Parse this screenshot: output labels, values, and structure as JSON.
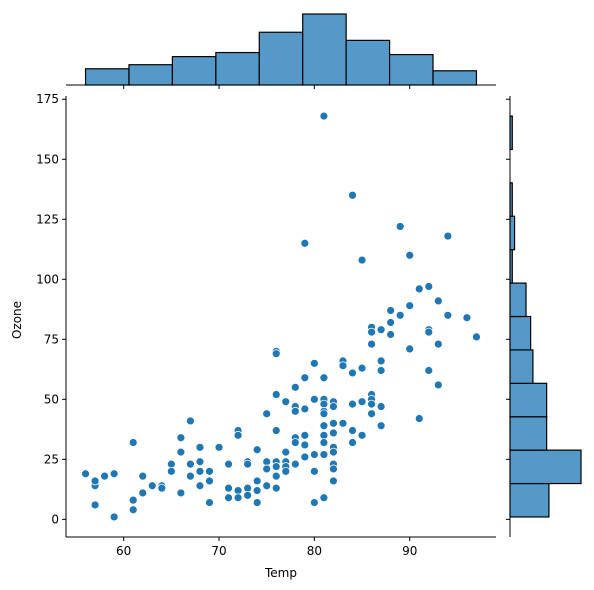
{
  "chart_data": {
    "type": "scatter",
    "title": "",
    "xlabel": "Temp",
    "ylabel": "Ozone",
    "xlim": [
      53.95,
      99.05
    ],
    "ylim": [
      -7.35,
      176.35
    ],
    "xticks": [
      60,
      70,
      80,
      90
    ],
    "yticks": [
      0,
      25,
      50,
      75,
      100,
      125,
      150,
      175
    ],
    "grid": false,
    "legend": "none",
    "colors": {
      "point_fill": "#1f77b4",
      "point_edge": "#ffffff",
      "hist_fill": "#5499c7",
      "hist_edge": "#000000"
    },
    "points": [
      [
        56,
        19
      ],
      [
        57,
        14
      ],
      [
        57,
        16
      ],
      [
        57,
        6
      ],
      [
        58,
        18
      ],
      [
        59,
        1
      ],
      [
        59,
        19
      ],
      [
        61,
        32
      ],
      [
        61,
        4
      ],
      [
        61,
        8
      ],
      [
        62,
        18
      ],
      [
        62,
        11
      ],
      [
        63,
        14
      ],
      [
        64,
        14
      ],
      [
        64,
        13
      ],
      [
        65,
        23
      ],
      [
        65,
        20
      ],
      [
        66,
        34
      ],
      [
        66,
        28
      ],
      [
        66,
        11
      ],
      [
        67,
        41
      ],
      [
        67,
        23
      ],
      [
        67,
        18
      ],
      [
        68,
        30
      ],
      [
        68,
        24
      ],
      [
        68,
        20
      ],
      [
        68,
        14
      ],
      [
        69,
        20
      ],
      [
        69,
        16
      ],
      [
        69,
        7
      ],
      [
        70,
        30
      ],
      [
        71,
        23
      ],
      [
        71,
        13
      ],
      [
        71,
        9
      ],
      [
        72,
        37
      ],
      [
        72,
        35
      ],
      [
        72,
        12
      ],
      [
        72,
        9
      ],
      [
        73,
        24
      ],
      [
        73,
        23
      ],
      [
        73,
        13
      ],
      [
        73,
        10
      ],
      [
        74,
        29
      ],
      [
        74,
        16
      ],
      [
        74,
        12
      ],
      [
        74,
        7
      ],
      [
        75,
        44
      ],
      [
        75,
        24
      ],
      [
        75,
        21
      ],
      [
        75,
        14
      ],
      [
        76,
        70
      ],
      [
        76,
        69
      ],
      [
        76,
        52
      ],
      [
        76,
        37
      ],
      [
        76,
        24
      ],
      [
        76,
        22
      ],
      [
        76,
        18
      ],
      [
        76,
        13
      ],
      [
        77,
        49
      ],
      [
        77,
        28
      ],
      [
        77,
        24
      ],
      [
        77,
        22
      ],
      [
        77,
        20
      ],
      [
        78,
        55
      ],
      [
        78,
        47
      ],
      [
        78,
        45
      ],
      [
        78,
        34
      ],
      [
        78,
        32
      ],
      [
        78,
        23
      ],
      [
        79,
        115
      ],
      [
        79,
        59
      ],
      [
        79,
        46
      ],
      [
        79,
        35
      ],
      [
        79,
        31
      ],
      [
        79,
        26
      ],
      [
        80,
        65
      ],
      [
        80,
        50
      ],
      [
        80,
        27
      ],
      [
        80,
        20
      ],
      [
        80,
        7
      ],
      [
        81,
        168
      ],
      [
        81,
        59
      ],
      [
        81,
        50
      ],
      [
        81,
        48
      ],
      [
        81,
        45
      ],
      [
        81,
        44
      ],
      [
        81,
        39
      ],
      [
        81,
        35
      ],
      [
        81,
        32
      ],
      [
        81,
        27
      ],
      [
        81,
        9
      ],
      [
        82,
        49
      ],
      [
        82,
        47
      ],
      [
        82,
        40
      ],
      [
        82,
        36
      ],
      [
        82,
        30
      ],
      [
        82,
        28
      ],
      [
        82,
        23
      ],
      [
        82,
        21
      ],
      [
        82,
        16
      ],
      [
        83,
        66
      ],
      [
        83,
        64
      ],
      [
        83,
        40
      ],
      [
        84,
        135
      ],
      [
        84,
        61
      ],
      [
        84,
        48
      ],
      [
        84,
        37
      ],
      [
        84,
        32
      ],
      [
        85,
        108
      ],
      [
        85,
        63
      ],
      [
        85,
        49
      ],
      [
        85,
        35
      ],
      [
        86,
        80
      ],
      [
        86,
        78
      ],
      [
        86,
        73
      ],
      [
        86,
        52
      ],
      [
        86,
        50
      ],
      [
        86,
        48
      ],
      [
        86,
        44
      ],
      [
        87,
        79
      ],
      [
        87,
        66
      ],
      [
        87,
        62
      ],
      [
        87,
        47
      ],
      [
        87,
        39
      ],
      [
        88,
        87
      ],
      [
        88,
        82
      ],
      [
        88,
        77
      ],
      [
        89,
        122
      ],
      [
        89,
        85
      ],
      [
        90,
        110
      ],
      [
        90,
        89
      ],
      [
        90,
        71
      ],
      [
        91,
        96
      ],
      [
        91,
        42
      ],
      [
        92,
        97
      ],
      [
        92,
        79
      ],
      [
        92,
        78
      ],
      [
        92,
        62
      ],
      [
        93,
        91
      ],
      [
        93,
        73
      ],
      [
        93,
        56
      ],
      [
        94,
        118
      ],
      [
        94,
        85
      ],
      [
        96,
        84
      ],
      [
        97,
        76
      ]
    ],
    "x_marginal_histogram": {
      "bin_edges": [
        56,
        60.556,
        65.111,
        69.667,
        74.222,
        78.778,
        83.333,
        87.889,
        92.444,
        97
      ],
      "counts": [
        8,
        10,
        14,
        16,
        26,
        35,
        22,
        15,
        7
      ]
    },
    "y_marginal_histogram": {
      "bin_edges": [
        1,
        14.917,
        28.833,
        42.75,
        56.667,
        70.583,
        84.5,
        98.417,
        112.333,
        126.25,
        140.167,
        154.083,
        168
      ],
      "counts": [
        17,
        31,
        16,
        16,
        10,
        9,
        7,
        1,
        2,
        1,
        0,
        1
      ]
    }
  }
}
